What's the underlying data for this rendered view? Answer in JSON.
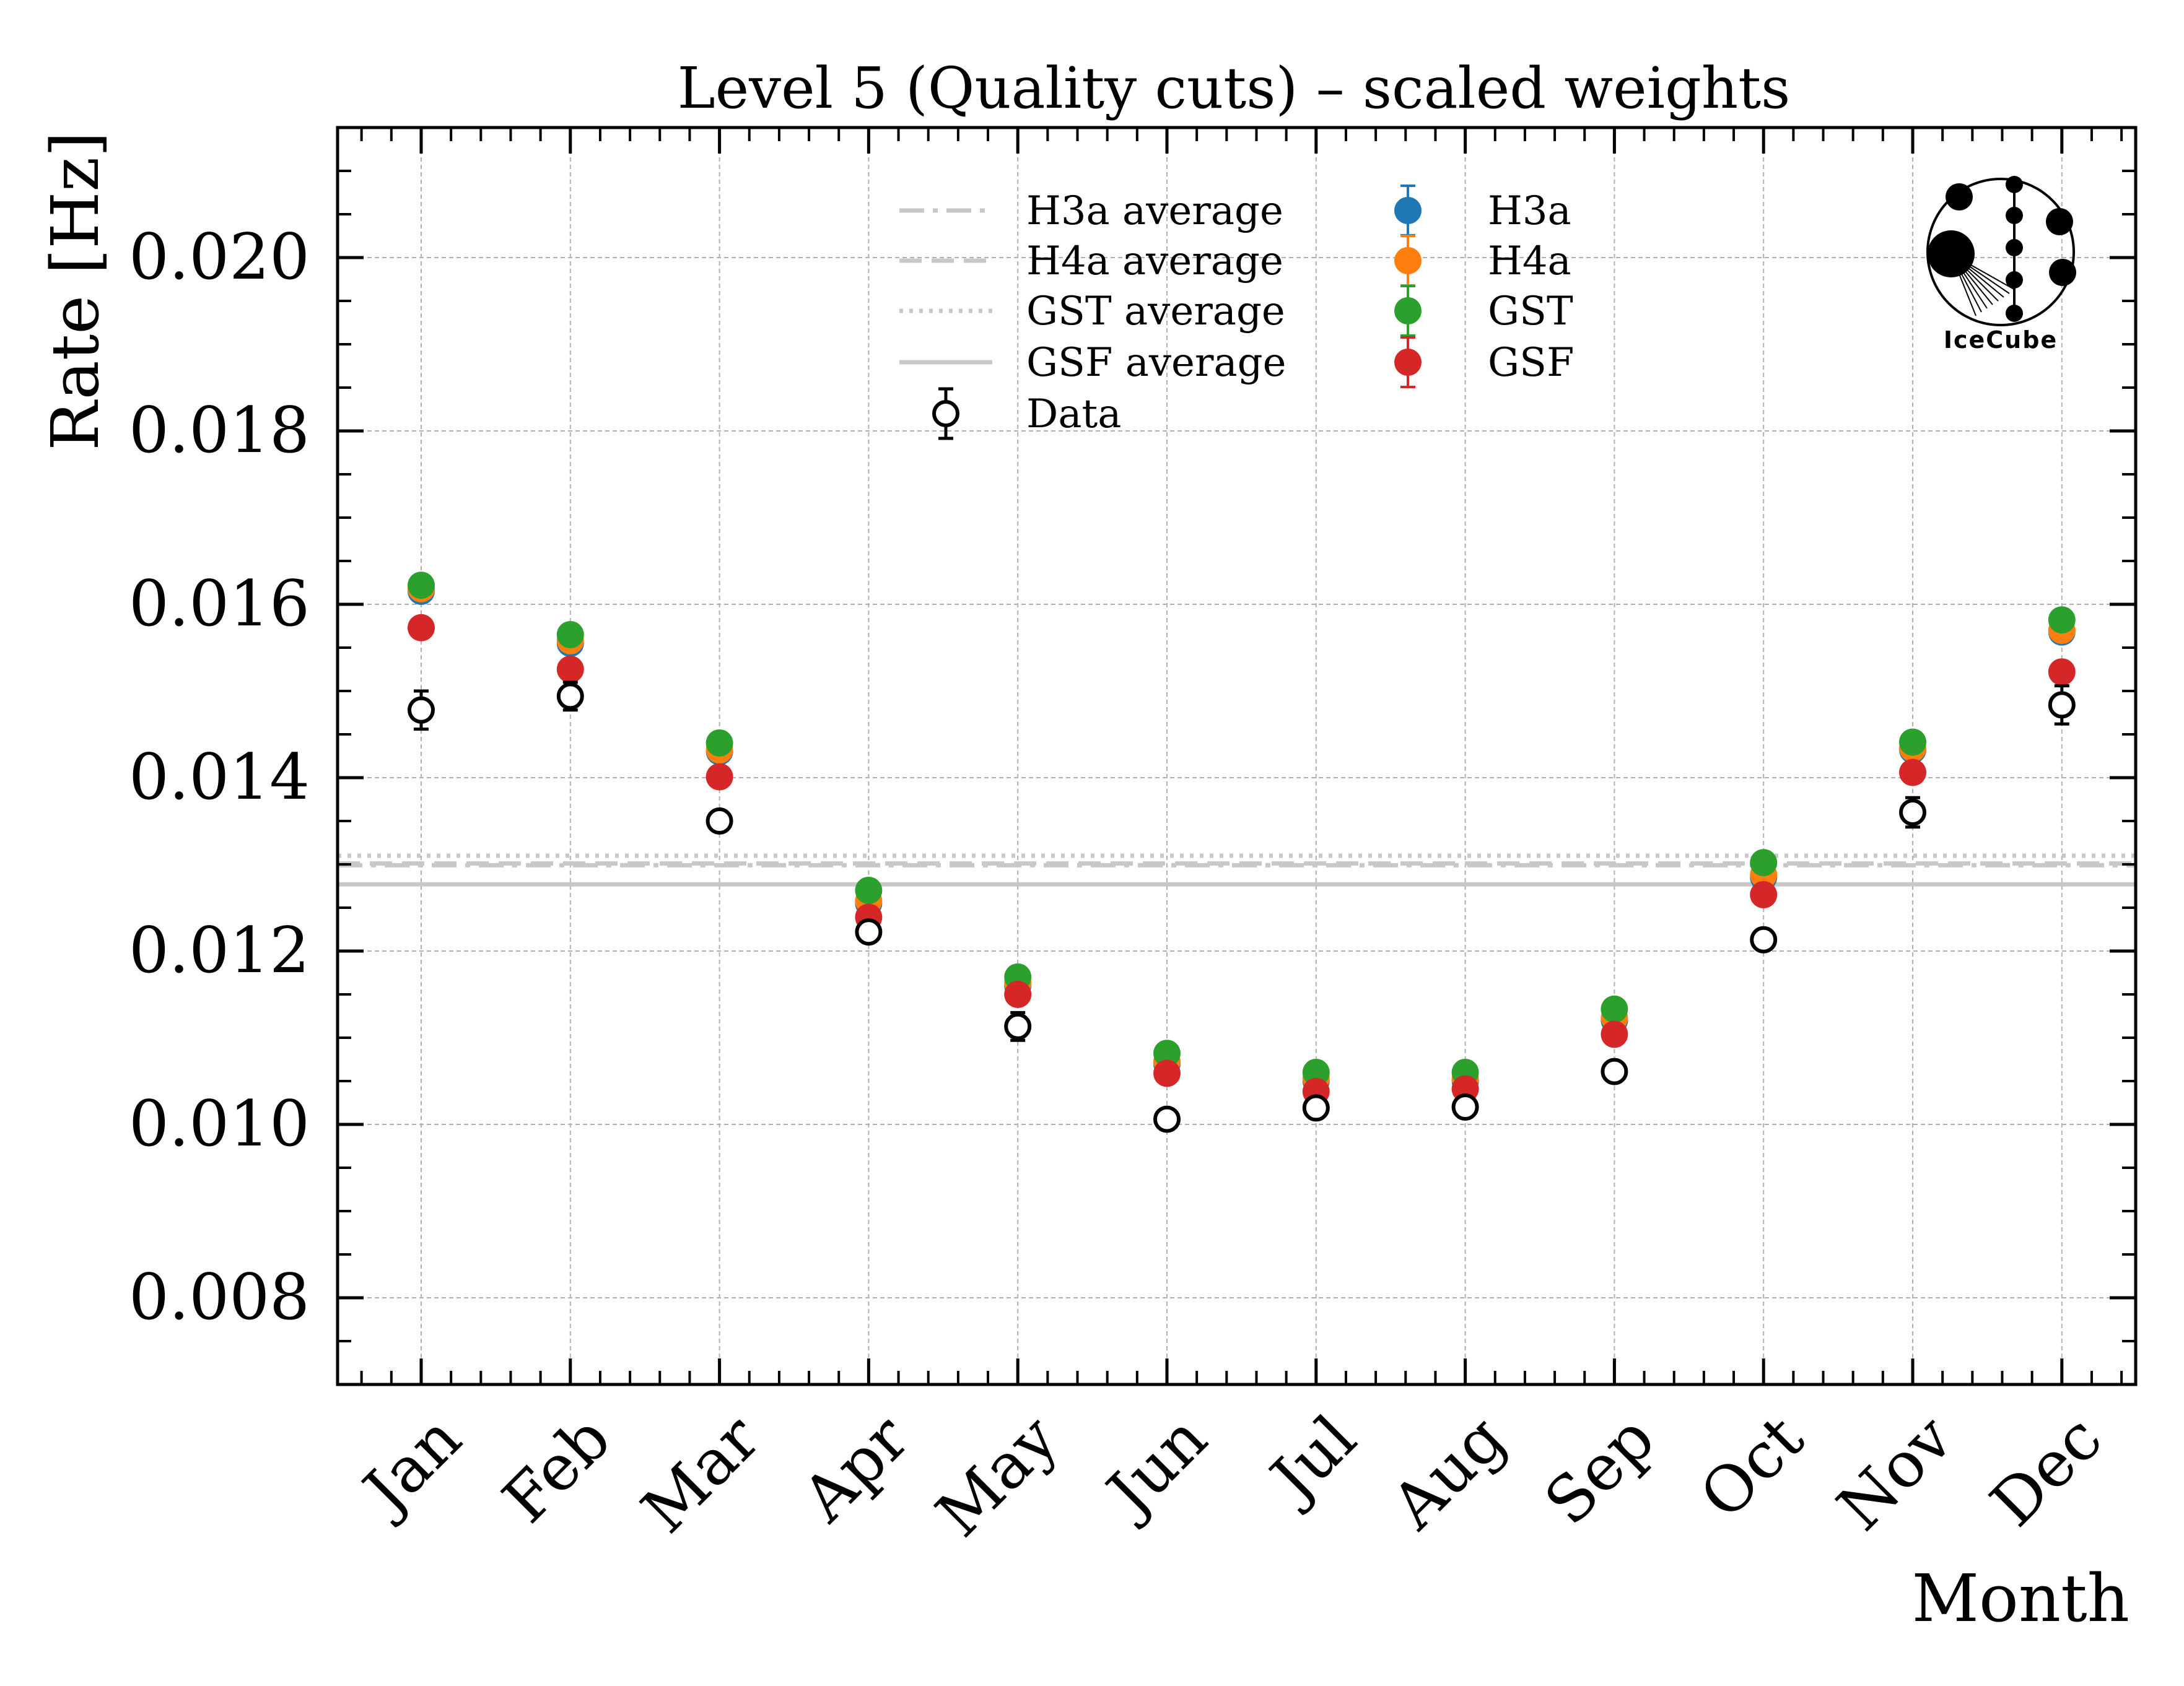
{
  "chart_data": {
    "type": "scatter",
    "title": "Level 5 (Quality cuts) – scaled weights",
    "xlabel": "Month",
    "ylabel": "Rate [Hz]",
    "categories": [
      "Jan",
      "Feb",
      "Mar",
      "Apr",
      "May",
      "Jun",
      "Jul",
      "Aug",
      "Sep",
      "Oct",
      "Nov",
      "Dec"
    ],
    "ylim": [
      0.007,
      0.0215
    ],
    "yticks": [
      "0.008",
      "0.010",
      "0.012",
      "0.014",
      "0.016",
      "0.018",
      "0.020"
    ],
    "grid": true,
    "legend_position": "top-center",
    "series": [
      {
        "name": "H3a",
        "color": "#1f77b4",
        "values": [
          0.01615,
          0.01555,
          0.0143,
          0.01255,
          0.0116,
          0.0107,
          0.0105,
          0.0105,
          0.0112,
          0.01285,
          0.01432,
          0.01568
        ]
      },
      {
        "name": "H4a",
        "color": "#ff7f0e",
        "values": [
          0.01618,
          0.01558,
          0.01432,
          0.01258,
          0.01163,
          0.01073,
          0.01053,
          0.01053,
          0.01123,
          0.01288,
          0.01434,
          0.0157
        ]
      },
      {
        "name": "GST",
        "color": "#2ca02c",
        "values": [
          0.01622,
          0.01565,
          0.0144,
          0.0127,
          0.0117,
          0.01082,
          0.0106,
          0.0106,
          0.01133,
          0.01302,
          0.01441,
          0.01582
        ]
      },
      {
        "name": "GSF",
        "color": "#d62728",
        "values": [
          0.01573,
          0.01525,
          0.01401,
          0.01239,
          0.0115,
          0.01059,
          0.01038,
          0.01041,
          0.01104,
          0.01265,
          0.01406,
          0.01522
        ]
      }
    ],
    "data": {
      "name": "Data",
      "values": [
        0.01478,
        0.01494,
        0.0135,
        0.01222,
        0.01113,
        0.01006,
        0.01019,
        0.0102,
        0.01061,
        0.01213,
        0.0136,
        0.01484
      ],
      "errors": [
        0.00022,
        0.00016,
        9e-05,
        8e-05,
        0.00016,
        7e-05,
        7e-05,
        7e-05,
        7e-05,
        7e-05,
        0.00017,
        0.00022
      ]
    },
    "averages": [
      {
        "name": "H3a average",
        "value": 0.01299,
        "style": "dashdot"
      },
      {
        "name": "H4a average",
        "value": 0.01301,
        "style": "dashed"
      },
      {
        "name": "GST average",
        "value": 0.0131,
        "style": "dotted"
      },
      {
        "name": "GSF average",
        "value": 0.01277,
        "style": "solid"
      }
    ],
    "legend_labels": [
      "H3a average",
      "H4a average",
      "GST average",
      "GSF average",
      "Data",
      "H3a",
      "H4a",
      "GST",
      "GSF"
    ]
  },
  "logo": {
    "text": "IceCube",
    "icon": "icecube-logo-icon"
  }
}
